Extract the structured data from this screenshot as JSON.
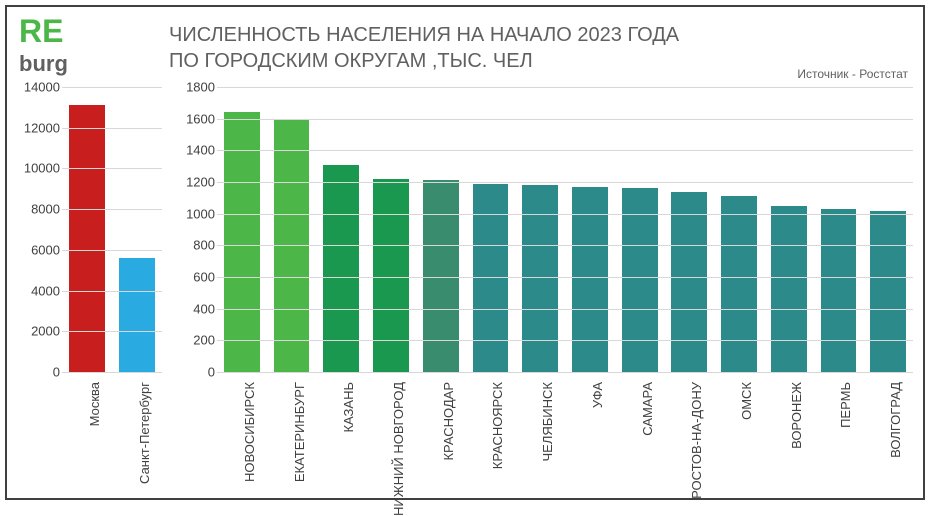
{
  "logo": {
    "line1": "RE",
    "line2": "burg",
    "color1": "#4cb648",
    "color2": "#606060"
  },
  "title_line1": "ЧИСЛЕННОСТЬ НАСЕЛЕНИЯ НА НАЧАЛО 2023 ГОДА",
  "title_line2": "ПО ГОРОДСКИМ ОКРУГАМ ,ТЫС. ЧЕЛ",
  "source": "Источник - Ростстат",
  "left_chart": {
    "type": "bar",
    "ylim": [
      0,
      14000
    ],
    "ytick_step": 2000,
    "yticks": [
      0,
      2000,
      4000,
      6000,
      8000,
      10000,
      12000,
      14000
    ],
    "grid_color": "#d8d8d8",
    "background_color": "#ffffff",
    "label_fontsize": 13,
    "categories": [
      "Москва",
      "Санкт-Петербург"
    ],
    "values": [
      13100,
      5600
    ],
    "bar_colors": [
      "#c81e1e",
      "#29abe2"
    ]
  },
  "right_chart": {
    "type": "bar",
    "ylim": [
      0,
      1800
    ],
    "ytick_step": 200,
    "yticks": [
      0,
      200,
      400,
      600,
      800,
      1000,
      1200,
      1400,
      1600,
      1800
    ],
    "grid_color": "#d8d8d8",
    "background_color": "#ffffff",
    "label_fontsize": 13,
    "categories": [
      "НОВОСИБИРСК",
      "ЕКАТЕРИНБУРГ",
      "КАЗАНЬ",
      "НИЖНИЙ НОВГОРОД",
      "КРАСНОДАР",
      "КРАСНОЯРСК",
      "ЧЕЛЯБИНСК",
      "УФА",
      "САМАРА",
      "РОСТОВ-НА-ДОНУ",
      "ОМСК",
      "ВОРОНЕЖ",
      "ПЕРМЬ",
      "ВОЛГОГРАД"
    ],
    "values": [
      1640,
      1590,
      1310,
      1220,
      1210,
      1190,
      1180,
      1170,
      1160,
      1140,
      1110,
      1050,
      1030,
      1020
    ],
    "bar_colors": [
      "#4cb648",
      "#4cb648",
      "#1a9850",
      "#1a9850",
      "#3a8c6e",
      "#2d8a8a",
      "#2d8a8a",
      "#2d8a8a",
      "#2d8a8a",
      "#2d8a8a",
      "#2d8a8a",
      "#2d8a8a",
      "#2d8a8a",
      "#2d8a8a"
    ]
  }
}
